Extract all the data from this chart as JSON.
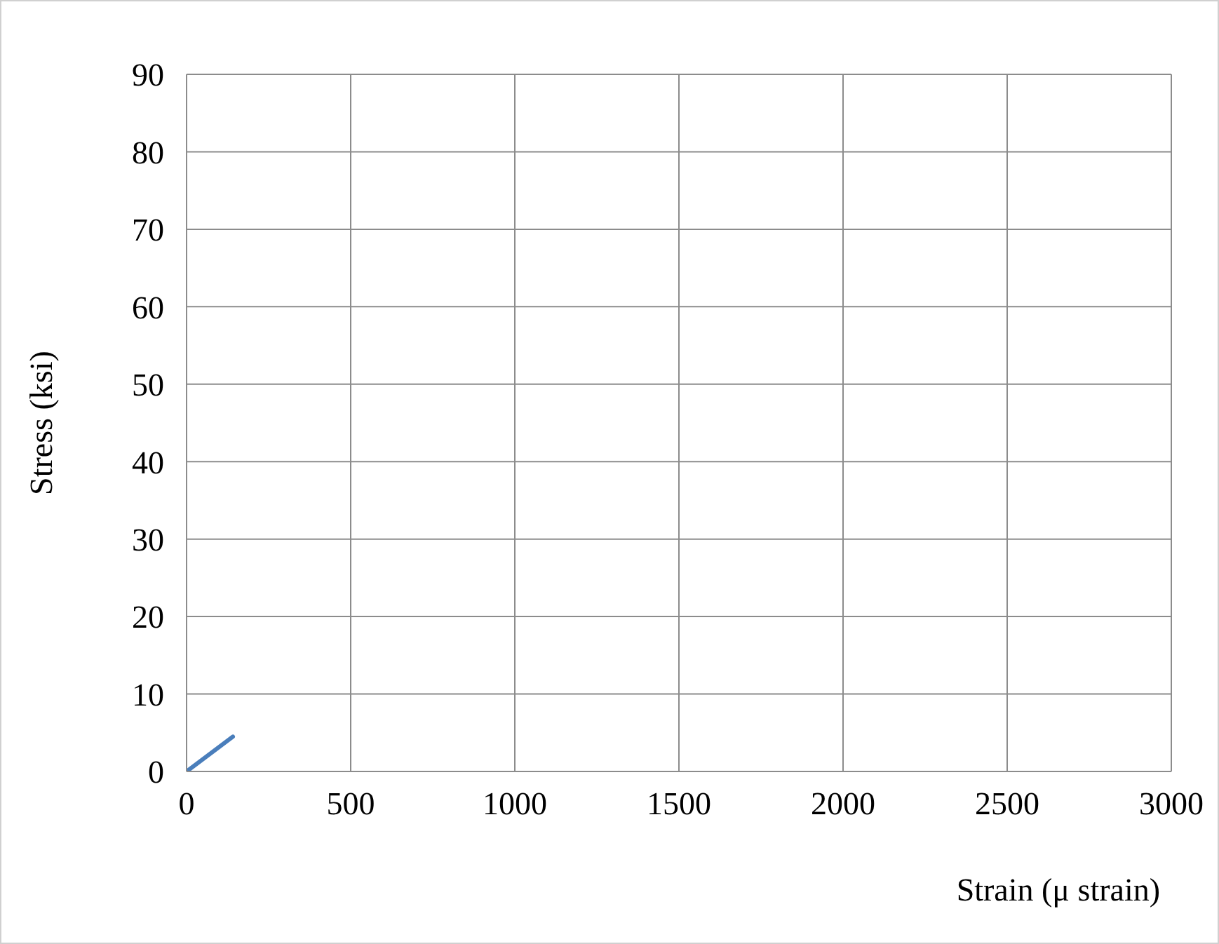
{
  "chart_data": {
    "type": "line",
    "xlabel": "Strain (μ strain)",
    "ylabel": "Stress (ksi)",
    "x": [
      0,
      141
    ],
    "series": [
      {
        "color": "#4a7ebb",
        "values": [
          0,
          4.5
        ]
      }
    ],
    "xlim": [
      0,
      3000
    ],
    "xticks": [
      0,
      500,
      1000,
      1500,
      2000,
      2500,
      3000
    ],
    "ylim": [
      0,
      90
    ],
    "yticks": [
      0,
      10,
      20,
      30,
      40,
      50,
      60,
      70,
      80,
      90
    ],
    "grid": true,
    "legend": false,
    "marker": "none",
    "line_style": "solid"
  }
}
